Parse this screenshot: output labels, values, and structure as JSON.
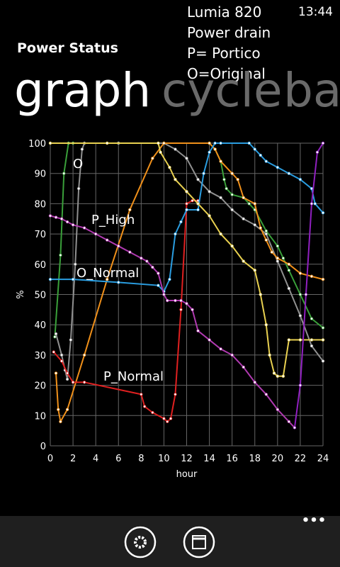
{
  "status_bar": {
    "time": "13:44"
  },
  "overlay": {
    "lines": [
      "Lumia 820",
      "Power drain",
      "P= Portico",
      "O=Original"
    ]
  },
  "app": {
    "title": "Power Status",
    "pivots": [
      "graph",
      "cycle",
      "ba"
    ]
  },
  "app_bar": {
    "more": "•••"
  },
  "chart_data": {
    "type": "line",
    "xlabel": "hour",
    "ylabel": "%",
    "xlim": [
      0,
      24
    ],
    "ylim": [
      0,
      100
    ],
    "xticks": [
      0,
      2,
      4,
      6,
      8,
      10,
      12,
      14,
      16,
      18,
      20,
      22,
      24
    ],
    "yticks": [
      0,
      10,
      20,
      30,
      40,
      50,
      60,
      70,
      80,
      90,
      100
    ],
    "grid": true,
    "annotations": [
      "O",
      "P_High",
      "O_Normal",
      "P_Normal"
    ],
    "series": [
      {
        "color": "#3aa03a",
        "x": [
          0.4,
          0.9,
          1.2,
          1.6,
          2,
          6,
          10,
          14,
          14.5,
          15,
          15.3,
          15.5,
          16,
          17,
          17.5,
          18,
          19,
          20,
          20.5,
          21,
          22,
          23,
          24
        ],
        "values": [
          36,
          63,
          90,
          100,
          100,
          100,
          100,
          100,
          98,
          94,
          88,
          85,
          83,
          82,
          80,
          78,
          71,
          66,
          62,
          58,
          50,
          42,
          39
        ]
      },
      {
        "color": "#909090",
        "x": [
          0.5,
          1,
          1.3,
          1.5,
          1.8,
          2.2,
          2.5,
          2.8,
          3,
          6,
          10,
          11,
          12,
          13,
          14,
          15,
          16,
          17,
          18,
          19,
          20,
          21,
          22,
          23,
          24
        ],
        "values": [
          37,
          30,
          25,
          22,
          35,
          60,
          85,
          98,
          100,
          100,
          100,
          98,
          95,
          88,
          84,
          82,
          78,
          75,
          73,
          70,
          61,
          52,
          43,
          33,
          28
        ]
      },
      {
        "color": "#f0901a",
        "x": [
          0.5,
          0.7,
          0.9,
          1.5,
          3,
          5,
          7,
          9,
          10,
          14,
          14.5,
          15,
          16,
          16.5,
          17,
          18,
          18.5,
          19,
          19.5,
          20,
          21,
          22,
          23,
          24
        ],
        "values": [
          24,
          12,
          8,
          12,
          30,
          55,
          78,
          95,
          100,
          100,
          98,
          94,
          90,
          88,
          82,
          80,
          72,
          68,
          64,
          62,
          60,
          57,
          56,
          55
        ]
      },
      {
        "color": "#e02020",
        "x": [
          0.3,
          1,
          1.5,
          2,
          3,
          8,
          8.3,
          9,
          10,
          10.3,
          10.6,
          11,
          11.5,
          12,
          12.5,
          13
        ],
        "values": [
          31,
          28,
          24,
          21,
          21,
          17,
          13,
          11,
          9,
          8,
          9,
          17,
          45,
          80,
          81,
          81
        ]
      },
      {
        "color": "#2a9de0",
        "x": [
          0,
          2,
          6,
          9.5,
          10,
          10.5,
          11,
          11.5,
          12,
          13,
          13.5,
          14,
          14.5,
          15,
          17.5,
          18,
          18.5,
          19,
          20,
          21,
          22,
          23,
          23.3,
          24
        ],
        "values": [
          55,
          55,
          54,
          53,
          51,
          55,
          70,
          74,
          78,
          78,
          90,
          97,
          100,
          100,
          100,
          98,
          96,
          94,
          92,
          90,
          88,
          85,
          80,
          77
        ]
      },
      {
        "color": "#e8d050",
        "x": [
          0,
          5,
          9.5,
          9.7,
          10.5,
          11,
          12,
          13,
          14,
          15,
          16,
          17,
          18,
          18.5,
          19,
          19.3,
          19.7,
          20,
          20.5,
          21,
          22,
          23,
          24
        ],
        "values": [
          100,
          100,
          100,
          97,
          92,
          88,
          84,
          80,
          76,
          70,
          66,
          61,
          58,
          50,
          40,
          30,
          24,
          23,
          23,
          35,
          35,
          35,
          35
        ]
      },
      {
        "color": "#b03ab0",
        "x": [
          0,
          0.5,
          1,
          1.5,
          2,
          3,
          4,
          5,
          6,
          7,
          8,
          8.5,
          9,
          9.5,
          10,
          10.3,
          11,
          11.5,
          12,
          12.5,
          13,
          14,
          15,
          16,
          17,
          18,
          19,
          20,
          21,
          21.5
        ],
        "values": [
          76,
          75.5,
          75,
          74,
          73,
          72,
          70,
          68,
          66,
          64,
          62,
          61,
          59,
          57,
          50,
          48,
          48,
          48,
          47,
          45,
          38,
          35,
          32,
          30,
          26,
          21,
          17,
          12,
          8,
          6
        ]
      },
      {
        "color": "#9020c0",
        "x": [
          21.5,
          22,
          22.5,
          23,
          23.5,
          24
        ],
        "values": [
          6,
          20,
          50,
          80,
          97,
          100
        ]
      }
    ]
  }
}
